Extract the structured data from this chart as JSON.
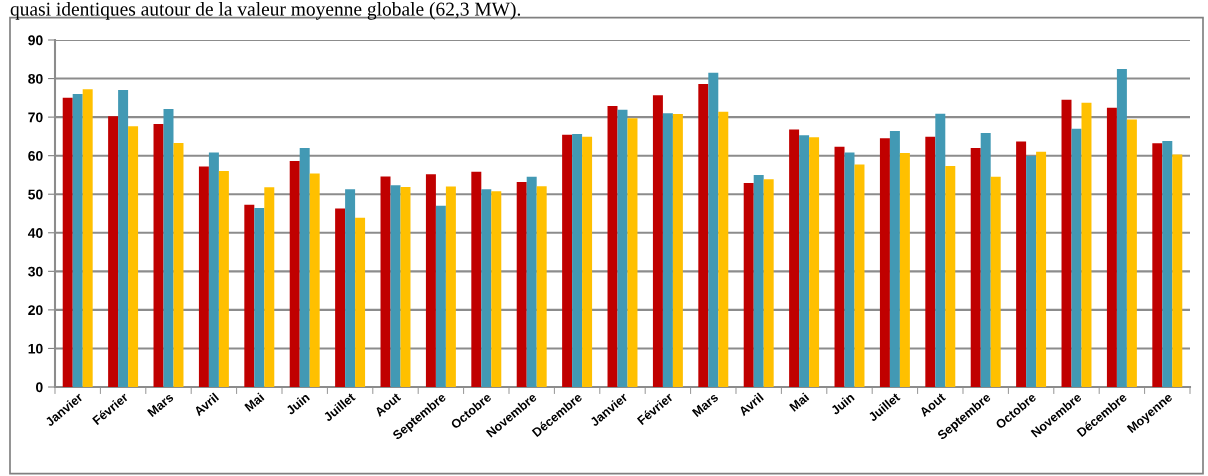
{
  "chart_data": {
    "type": "bar",
    "annotations": [
      "quasi identiques autour de la valeur moyenne globale (62,3 MW)."
    ],
    "categories": [
      "Janvier",
      "Février",
      "Mars",
      "Avril",
      "Mai",
      "Juin",
      "Juillet",
      "Aout",
      "Septembre",
      "Octobre",
      "Novembre",
      "Décembre",
      "Janvier",
      "Février",
      "Mars",
      "Avril",
      "Mai",
      "Juin",
      "Juillet",
      "Aout",
      "Septembre",
      "Octobre",
      "Novembre",
      "Décembre",
      "Moyenne"
    ],
    "series": [
      {
        "color": "#c00000",
        "values": [
          75,
          70.2,
          68.2,
          57.2,
          47.3,
          58.6,
          46.3,
          54.6,
          55.2,
          55.8,
          53.2,
          65.4,
          72.9,
          75.7,
          78.6,
          52.9,
          66.8,
          62.3,
          64.5,
          64.9,
          62,
          63.7,
          74.5,
          72.4,
          63.2
        ]
      },
      {
        "color": "#4299b4",
        "values": [
          76,
          77,
          72.1,
          60.8,
          46.4,
          62,
          51.3,
          52.3,
          47,
          51.3,
          54.5,
          65.6,
          71.9,
          71,
          81.5,
          55,
          65.3,
          60.8,
          66.4,
          70.9,
          65.9,
          59.9,
          67,
          82.5,
          63.8
        ]
      },
      {
        "color": "#ffc000",
        "values": [
          77.2,
          67.6,
          63.3,
          56,
          51.8,
          55.4,
          43.9,
          51.9,
          52,
          50.8,
          52.1,
          64.9,
          69.7,
          70.8,
          71.4,
          53.9,
          64.8,
          57.7,
          60.7,
          57.3,
          54.5,
          61,
          73.7,
          69.4,
          60.3
        ]
      }
    ],
    "ylim": [
      0,
      90
    ],
    "yticks": [
      0,
      10,
      20,
      30,
      40,
      50,
      60,
      70,
      80,
      90
    ],
    "grid": "y",
    "legend": false
  }
}
